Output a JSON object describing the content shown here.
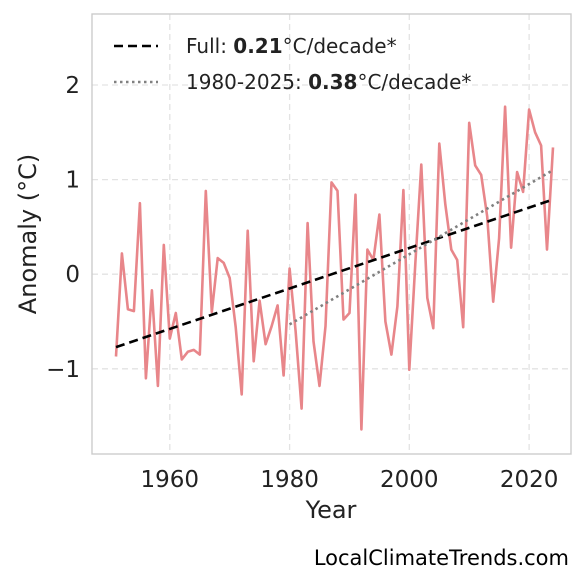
{
  "chart_data": {
    "type": "line",
    "xlabel": "Year",
    "ylabel": "Anomaly (°C)",
    "xlim": [
      1947,
      2027
    ],
    "ylim": [
      -1.9,
      2.75
    ],
    "xticks": [
      1960,
      1980,
      2000,
      2020
    ],
    "yticks": [
      -1,
      0,
      1,
      2
    ],
    "ytick_labels": [
      "−1",
      "0",
      "1",
      "2"
    ],
    "grid": true,
    "legend_position": "top-left",
    "series": [
      {
        "style": "solid",
        "color": "#e8868a",
        "x": [
          1951,
          1952,
          1953,
          1954,
          1955,
          1956,
          1957,
          1958,
          1959,
          1960,
          1961,
          1962,
          1963,
          1964,
          1965,
          1966,
          1967,
          1968,
          1969,
          1970,
          1971,
          1972,
          1973,
          1974,
          1975,
          1976,
          1977,
          1978,
          1979,
          1980,
          1981,
          1982,
          1983,
          1984,
          1985,
          1986,
          1987,
          1988,
          1989,
          1990,
          1991,
          1992,
          1993,
          1994,
          1995,
          1996,
          1997,
          1998,
          1999,
          2000,
          2001,
          2002,
          2003,
          2004,
          2005,
          2006,
          2007,
          2008,
          2009,
          2010,
          2011,
          2012,
          2013,
          2014,
          2015,
          2016,
          2017,
          2018,
          2019,
          2020,
          2021,
          2022,
          2023,
          2024
        ],
        "y": [
          -0.87,
          0.22,
          -0.37,
          -0.39,
          0.75,
          -1.1,
          -0.17,
          -1.18,
          0.31,
          -0.68,
          -0.41,
          -0.9,
          -0.82,
          -0.8,
          -0.85,
          0.88,
          -0.4,
          0.17,
          0.12,
          -0.04,
          -0.56,
          -1.27,
          0.46,
          -0.92,
          -0.28,
          -0.74,
          -0.55,
          -0.33,
          -1.07,
          0.06,
          -0.6,
          -1.42,
          0.54,
          -0.71,
          -1.18,
          -0.55,
          0.97,
          0.88,
          -0.48,
          -0.41,
          0.84,
          -1.64,
          0.26,
          0.15,
          0.63,
          -0.5,
          -0.85,
          -0.34,
          0.89,
          -1.01,
          0.11,
          1.16,
          -0.25,
          -0.57,
          1.38,
          0.74,
          0.26,
          0.15,
          -0.56,
          1.6,
          1.15,
          1.05,
          0.61,
          -0.29,
          0.38,
          1.77,
          0.28,
          1.08,
          0.87,
          1.74,
          1.5,
          1.36,
          0.26,
          1.34
        ]
      },
      {
        "name": "Full",
        "style": "dashed",
        "color": "#000000",
        "x": [
          1951,
          2024
        ],
        "y": [
          -0.77,
          0.79
        ]
      },
      {
        "name": "1980-2025",
        "style": "dotted",
        "color": "#808080",
        "x": [
          1980,
          2024
        ],
        "y": [
          -0.53,
          1.1
        ]
      }
    ],
    "legend": [
      {
        "prefix": "Full: ",
        "value": "0.21",
        "suffix": "°C/decade*"
      },
      {
        "prefix": "1980-2025: ",
        "value": "0.38",
        "suffix": "°C/decade*"
      }
    ]
  },
  "watermark": "LocalClimateTrends.com"
}
